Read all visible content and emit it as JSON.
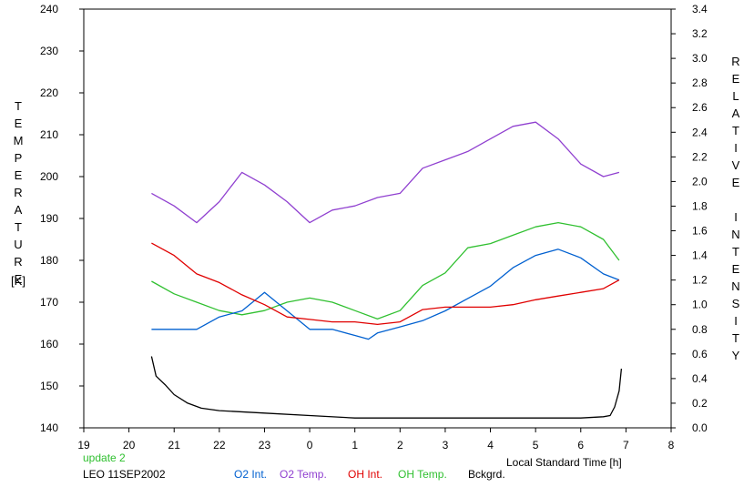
{
  "chart_data": {
    "type": "line",
    "xlabel": "Local Standard Time [h]",
    "ylabel_left": "TEMPERATURE",
    "ylabel_left_unit": "[K]",
    "ylabel_right": "RELATIVE INTENSITY",
    "xlim": [
      19,
      32
    ],
    "x_ticks": [
      "19",
      "20",
      "21",
      "22",
      "23",
      "0",
      "1",
      "2",
      "3",
      "4",
      "5",
      "6",
      "7",
      "8"
    ],
    "ylim_left": [
      140,
      240
    ],
    "y_ticks_left": [
      "140",
      "150",
      "160",
      "170",
      "180",
      "190",
      "200",
      "210",
      "220",
      "230",
      "240"
    ],
    "ylim_right": [
      0.0,
      3.4
    ],
    "y_ticks_right": [
      "0.0",
      "0.2",
      "0.4",
      "0.6",
      "0.8",
      "1.0",
      "1.2",
      "1.4",
      "1.6",
      "1.8",
      "2.0",
      "2.2",
      "2.4",
      "2.6",
      "2.8",
      "3.0",
      "3.2",
      "3.4"
    ],
    "grid": false,
    "series": [
      {
        "name": "O2 Int.",
        "axis": "right",
        "color": "#0060d0",
        "x": [
          20.5,
          21.0,
          21.5,
          22.0,
          22.5,
          23.0,
          23.5,
          24.0,
          24.5,
          25.0,
          25.3,
          25.5,
          26.0,
          26.5,
          27.0,
          27.5,
          28.0,
          28.5,
          29.0,
          29.5,
          30.0,
          30.5,
          30.85
        ],
        "y": [
          0.8,
          0.8,
          0.8,
          0.9,
          0.95,
          1.1,
          0.95,
          0.8,
          0.8,
          0.75,
          0.72,
          0.77,
          0.82,
          0.87,
          0.95,
          1.05,
          1.15,
          1.3,
          1.4,
          1.45,
          1.38,
          1.25,
          1.2
        ]
      },
      {
        "name": "O2 Temp.",
        "axis": "left",
        "color": "#9040d0",
        "x": [
          20.5,
          21.0,
          21.5,
          22.0,
          22.5,
          23.0,
          23.5,
          24.0,
          24.5,
          25.0,
          25.5,
          26.0,
          26.5,
          27.0,
          27.5,
          28.0,
          28.5,
          29.0,
          29.5,
          30.0,
          30.5,
          30.85
        ],
        "y": [
          196,
          193,
          189,
          194,
          201,
          198,
          194,
          189,
          192,
          193,
          195,
          196,
          202,
          204,
          206,
          209,
          212,
          213,
          209,
          203,
          200,
          201
        ]
      },
      {
        "name": "OH Int.",
        "axis": "right",
        "color": "#e00000",
        "x": [
          20.5,
          21.0,
          21.5,
          22.0,
          22.5,
          23.0,
          23.5,
          24.0,
          24.5,
          25.0,
          25.5,
          26.0,
          26.5,
          27.0,
          27.5,
          28.0,
          28.5,
          29.0,
          29.5,
          30.0,
          30.5,
          30.85
        ],
        "y": [
          1.5,
          1.4,
          1.25,
          1.18,
          1.08,
          1.0,
          0.9,
          0.88,
          0.86,
          0.86,
          0.84,
          0.86,
          0.96,
          0.98,
          0.98,
          0.98,
          1.0,
          1.04,
          1.07,
          1.1,
          1.13,
          1.2
        ]
      },
      {
        "name": "OH Temp.",
        "axis": "left",
        "color": "#30c030",
        "x": [
          20.5,
          21.0,
          21.5,
          22.0,
          22.5,
          23.0,
          23.5,
          24.0,
          24.5,
          25.0,
          25.5,
          26.0,
          26.5,
          27.0,
          27.5,
          28.0,
          28.5,
          29.0,
          29.5,
          30.0,
          30.5,
          30.85
        ],
        "y": [
          175,
          172,
          170,
          168,
          167,
          168,
          170,
          171,
          170,
          168,
          166,
          168,
          174,
          177,
          183,
          184,
          186,
          188,
          189,
          188,
          185,
          180
        ]
      },
      {
        "name": "Bckgrd.",
        "axis": "right",
        "color": "#000000",
        "x": [
          20.5,
          20.6,
          20.8,
          21.0,
          21.3,
          21.6,
          22.0,
          23.0,
          24.0,
          25.0,
          26.0,
          27.0,
          28.0,
          29.0,
          29.5,
          30.0,
          30.5,
          30.65,
          30.75,
          30.85,
          30.9
        ],
        "y": [
          0.58,
          0.42,
          0.35,
          0.27,
          0.2,
          0.16,
          0.14,
          0.12,
          0.1,
          0.08,
          0.08,
          0.08,
          0.08,
          0.08,
          0.08,
          0.08,
          0.09,
          0.1,
          0.17,
          0.3,
          0.48
        ]
      }
    ]
  },
  "footer": {
    "update_text": "update 2",
    "station_text": "LEO 11SEP2002"
  },
  "colors": {
    "update_text": "#30c030"
  }
}
